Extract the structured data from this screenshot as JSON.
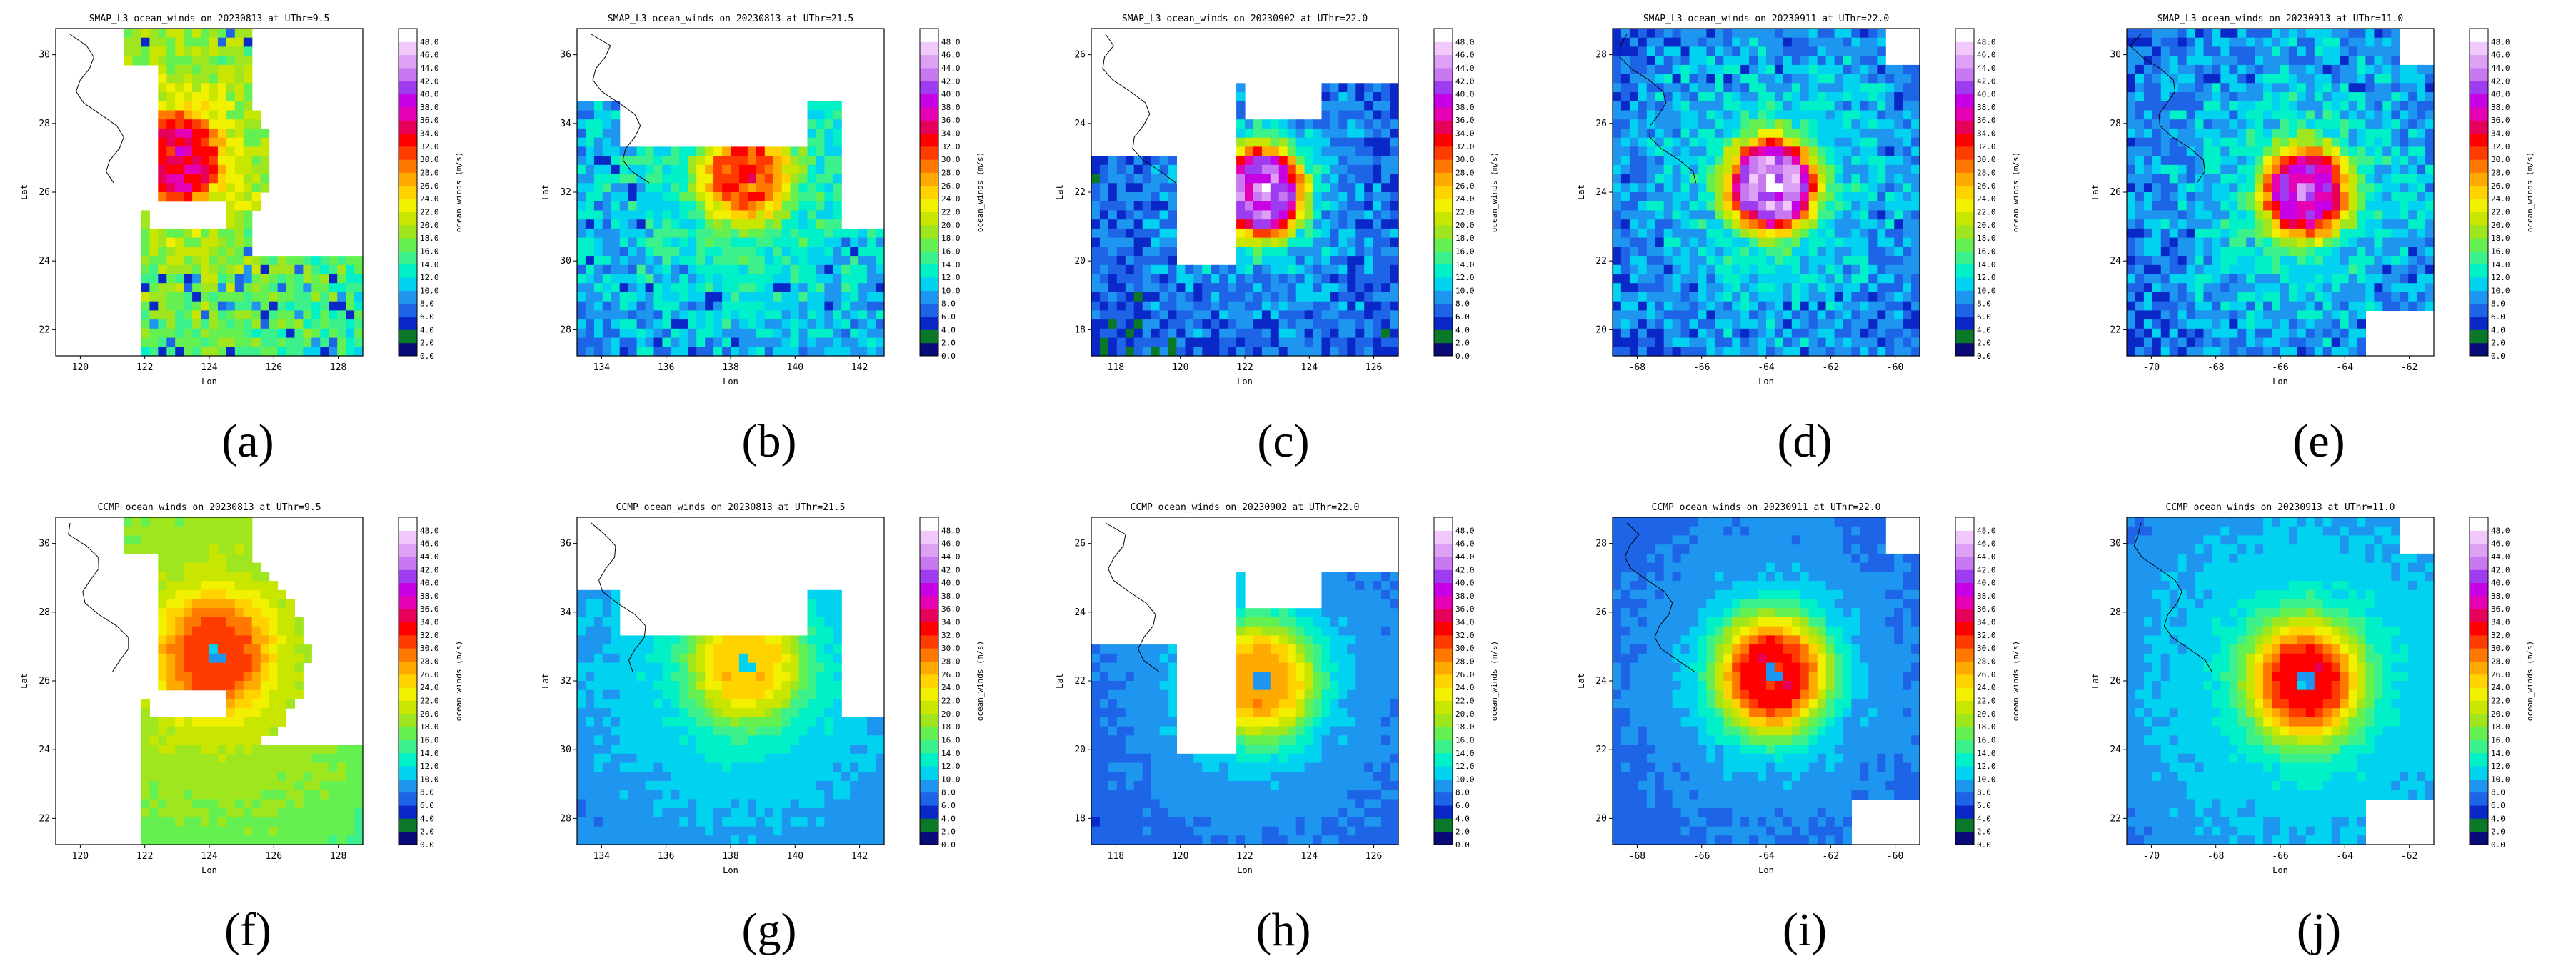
{
  "colorbar": {
    "tick_labels": [
      "0.0",
      "2.0",
      "4.0",
      "6.0",
      "8.0",
      "10.0",
      "12.0",
      "14.0",
      "16.0",
      "18.0",
      "20.0",
      "22.0",
      "24.0",
      "26.0",
      "28.0",
      "30.0",
      "32.0",
      "34.0",
      "36.0",
      "38.0",
      "40.0",
      "42.0",
      "44.0",
      "46.0",
      "48.0"
    ],
    "axis_label": "ocean_winds (m/s)",
    "colors": [
      "#0a0a78",
      "#0a7828",
      "#0a28c8",
      "#1e64e6",
      "#1e96f0",
      "#00d2f0",
      "#00f0c8",
      "#3cf08c",
      "#64f050",
      "#a0e61e",
      "#c8e600",
      "#f0f000",
      "#ffd200",
      "#ffaa00",
      "#ff7800",
      "#ff3c00",
      "#ff0000",
      "#e6005a",
      "#e600b4",
      "#c800e6",
      "#a03cf0",
      "#c878f0",
      "#dca0f5",
      "#f0c8fa",
      "#ffffff"
    ]
  },
  "panels": [
    {
      "id": "a",
      "title": "SMAP_L3 ocean_winds on 20230813 at UThr=9.5",
      "xlabel": "Lon",
      "ylabel": "Lat",
      "xticks": [
        "120",
        "122",
        "124",
        "126",
        "128"
      ],
      "yticks": [
        "22",
        "24",
        "26",
        "28",
        "30"
      ],
      "cx": 0.4,
      "cy": 0.4,
      "peak": 36,
      "bg": 22,
      "eye": "ring"
    },
    {
      "id": "b",
      "title": "SMAP_L3 ocean_winds on 20230813 at UThr=21.5",
      "xlabel": "Lon",
      "ylabel": "Lat",
      "xticks": [
        "134",
        "136",
        "138",
        "140",
        "142"
      ],
      "yticks": [
        "28",
        "30",
        "32",
        "34",
        "36"
      ],
      "cx": 0.55,
      "cy": 0.45,
      "peak": 32,
      "bg": 16,
      "eye": "ring"
    },
    {
      "id": "c",
      "title": "SMAP_L3 ocean_winds on 20230902 at UThr=22.0",
      "xlabel": "Lon",
      "ylabel": "Lat",
      "xticks": [
        "118",
        "120",
        "122",
        "124",
        "126"
      ],
      "yticks": [
        "18",
        "20",
        "22",
        "24",
        "26"
      ],
      "cx": 0.55,
      "cy": 0.5,
      "peak": 44,
      "bg": 12,
      "eye": "ring"
    },
    {
      "id": "d",
      "title": "SMAP_L3 ocean_winds on 20230911 at UThr=22.0",
      "xlabel": "Lon",
      "ylabel": "Lat",
      "xticks": [
        "-68",
        "-66",
        "-64",
        "-62",
        "-60"
      ],
      "yticks": [
        "20",
        "22",
        "24",
        "26",
        "28"
      ],
      "cx": 0.52,
      "cy": 0.48,
      "peak": 46,
      "bg": 14,
      "eye": "ring"
    },
    {
      "id": "e",
      "title": "SMAP_L3 ocean_winds on 20230913 at UThr=11.0",
      "xlabel": "Lon",
      "ylabel": "Lat",
      "xticks": [
        "-70",
        "-68",
        "-66",
        "-64",
        "-62"
      ],
      "yticks": [
        "22",
        "24",
        "26",
        "28",
        "30"
      ],
      "cx": 0.58,
      "cy": 0.5,
      "peak": 40,
      "bg": 14,
      "eye": "ring"
    },
    {
      "id": "f",
      "title": "CCMP ocean_winds on 20230813 at UThr=9.5",
      "xlabel": "Lon",
      "ylabel": "Lat",
      "xticks": [
        "120",
        "122",
        "124",
        "126",
        "128"
      ],
      "yticks": [
        "22",
        "24",
        "26",
        "28",
        "30"
      ],
      "cx": 0.52,
      "cy": 0.42,
      "peak": 32,
      "bg": 22,
      "eye": "dot"
    },
    {
      "id": "g",
      "title": "CCMP ocean_winds on 20230813 at UThr=21.5",
      "xlabel": "Lon",
      "ylabel": "Lat",
      "xticks": [
        "134",
        "136",
        "138",
        "140",
        "142"
      ],
      "yticks": [
        "28",
        "30",
        "32",
        "34",
        "36"
      ],
      "cx": 0.55,
      "cy": 0.45,
      "peak": 26,
      "bg": 14,
      "eye": "dot"
    },
    {
      "id": "h",
      "title": "CCMP ocean_winds on 20230902 at UThr=22.0",
      "xlabel": "Lon",
      "ylabel": "Lat",
      "xticks": [
        "118",
        "120",
        "122",
        "124",
        "126"
      ],
      "yticks": [
        "18",
        "20",
        "22",
        "24",
        "26"
      ],
      "cx": 0.55,
      "cy": 0.5,
      "peak": 28,
      "bg": 12,
      "eye": "dot"
    },
    {
      "id": "i",
      "title": "CCMP ocean_winds on 20230911 at UThr=22.0",
      "xlabel": "Lon",
      "ylabel": "Lat",
      "xticks": [
        "-68",
        "-66",
        "-64",
        "-62",
        "-60"
      ],
      "yticks": [
        "20",
        "22",
        "24",
        "26",
        "28"
      ],
      "cx": 0.52,
      "cy": 0.48,
      "peak": 34,
      "bg": 12,
      "eye": "dot"
    },
    {
      "id": "j",
      "title": "CCMP ocean_winds on 20230913 at UThr=11.0",
      "xlabel": "Lon",
      "ylabel": "Lat",
      "xticks": [
        "-70",
        "-68",
        "-66",
        "-64",
        "-62"
      ],
      "yticks": [
        "22",
        "24",
        "26",
        "28",
        "30"
      ],
      "cx": 0.58,
      "cy": 0.5,
      "peak": 34,
      "bg": 14,
      "eye": "dot"
    }
  ],
  "captions": [
    "(a)",
    "(b)",
    "(c)",
    "(d)",
    "(e)",
    "(f)",
    "(g)",
    "(h)",
    "(i)",
    "(j)"
  ]
}
